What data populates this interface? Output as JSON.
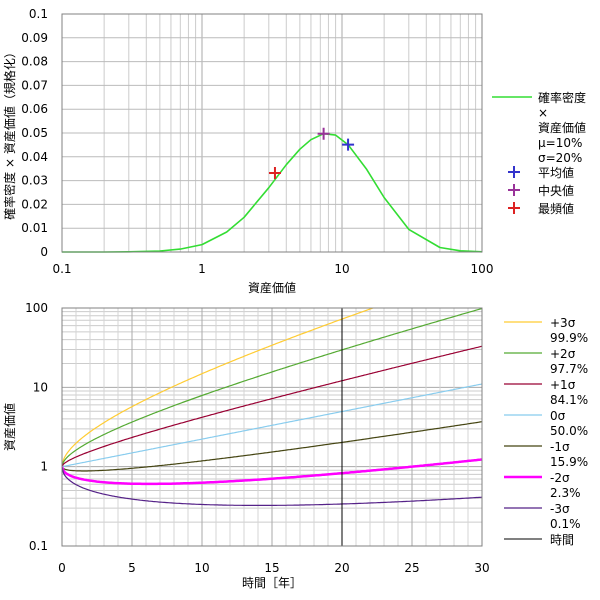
{
  "chart_data": [
    {
      "type": "line",
      "xscale": "log",
      "xlabel": "資産価値",
      "ylabel": "確率密度 × 資産価値（規格化）",
      "xlim": [
        0.1,
        100
      ],
      "ylim": [
        0,
        0.1
      ],
      "x_ticks": [
        "0.1",
        "1",
        "10",
        "100"
      ],
      "y_ticks": [
        "0",
        "0.01",
        "0.02",
        "0.03",
        "0.04",
        "0.05",
        "0.06",
        "0.07",
        "0.08",
        "0.09",
        "0.1"
      ],
      "grid": true,
      "legend_position": "right",
      "series": [
        {
          "name": "確率密度 × 資産価値 μ=10% σ=20%",
          "legend_lines": [
            "確率密度",
            "×",
            "資産価値",
            "μ=10%",
            "σ=20%"
          ],
          "color": "#33dd33",
          "x": [
            0.1,
            0.2,
            0.3,
            0.5,
            0.7,
            1,
            1.5,
            2,
            3,
            4,
            5,
            6,
            7.39,
            9,
            11.05,
            15,
            20,
            30,
            50,
            70,
            100
          ],
          "y": [
            0.0,
            0.0,
            0.0001,
            0.0004,
            0.0012,
            0.0031,
            0.0084,
            0.0146,
            0.027,
            0.0367,
            0.0432,
            0.0472,
            0.0497,
            0.0491,
            0.0451,
            0.0347,
            0.0229,
            0.0095,
            0.0019,
            0.0005,
            0.0001
          ]
        }
      ],
      "points": [
        {
          "name": "平均値",
          "color": "#3333cc",
          "x": 11.05,
          "y": 0.0451
        },
        {
          "name": "中央値",
          "color": "#993399",
          "x": 7.39,
          "y": 0.0497
        },
        {
          "name": "最頻値",
          "color": "#dd2222",
          "x": 3.32,
          "y": 0.0332
        }
      ]
    },
    {
      "type": "line",
      "yscale": "log",
      "xlabel": "時間［年］",
      "ylabel": "資産価値",
      "xlim": [
        0,
        30
      ],
      "ylim": [
        0.1,
        100
      ],
      "x_ticks": [
        "0",
        "5",
        "10",
        "15",
        "20",
        "25",
        "30"
      ],
      "y_ticks": [
        "0.1",
        "1",
        "10",
        "100"
      ],
      "grid": true,
      "legend_position": "right",
      "series": [
        {
          "name": "+3σ 99.9%",
          "label": "+3σ",
          "pct": "99.9%",
          "color": "#ffcc33",
          "k": 3,
          "width": 1.2
        },
        {
          "name": "+2σ 97.7%",
          "label": "+2σ",
          "pct": "97.7%",
          "color": "#55aa33",
          "k": 2,
          "width": 1.2
        },
        {
          "name": "+1σ 84.1%",
          "label": "+1σ",
          "pct": "84.1%",
          "color": "#990033",
          "k": 1,
          "width": 1.2
        },
        {
          "name": "0σ 50.0%",
          "label": "0σ",
          "pct": "50.0%",
          "color": "#88ccee",
          "k": 0,
          "width": 1.2
        },
        {
          "name": "-1σ 15.9%",
          "label": "-1σ",
          "pct": "15.9%",
          "color": "#444411",
          "k": -1,
          "width": 1.2
        },
        {
          "name": "-2σ 2.3%",
          "label": "-2σ",
          "pct": "2.3%",
          "color": "#ff00ff",
          "k": -2,
          "width": 2.5
        },
        {
          "name": "-3σ 0.1%",
          "label": "-3σ",
          "pct": "0.1%",
          "color": "#552288",
          "k": -3,
          "width": 1.2
        }
      ],
      "marker_line": {
        "name": "時間",
        "x": 20,
        "color": "#000000"
      },
      "model": {
        "mu": 0.1,
        "sigma": 0.2
      }
    }
  ]
}
